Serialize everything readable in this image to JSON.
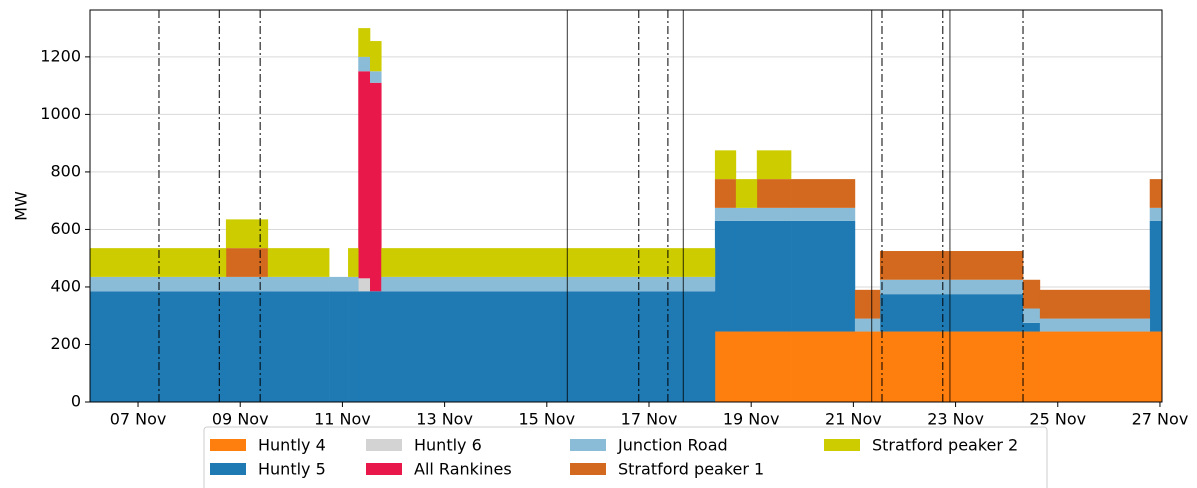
{
  "chart_data": {
    "type": "stacked-step-area",
    "ylabel": "MW",
    "ylim": [
      0,
      1363
    ],
    "yticks": [
      0,
      200,
      400,
      600,
      800,
      1000,
      1200
    ],
    "xlim": [
      6.06,
      27.04
    ],
    "xticks": [
      {
        "value": 7,
        "label": "07 Nov"
      },
      {
        "value": 9,
        "label": "09 Nov"
      },
      {
        "value": 11,
        "label": "11 Nov"
      },
      {
        "value": 13,
        "label": "13 Nov"
      },
      {
        "value": 15,
        "label": "15 Nov"
      },
      {
        "value": 17,
        "label": "17 Nov"
      },
      {
        "value": 19,
        "label": "19 Nov"
      },
      {
        "value": 21,
        "label": "21 Nov"
      },
      {
        "value": 23,
        "label": "23 Nov"
      },
      {
        "value": 25,
        "label": "25 Nov"
      },
      {
        "value": 27,
        "label": "27 Nov"
      }
    ],
    "grid": true,
    "legend": {
      "position": "bottom",
      "ncol": 4
    },
    "x": [
      6.06,
      8.72,
      9.54,
      10.74,
      11.11,
      11.31,
      11.54,
      11.76,
      18.29,
      18.7,
      19.11,
      19.78,
      21.03,
      21.52,
      24.32,
      24.65,
      26.8,
      27.04
    ],
    "series": [
      {
        "name": "Huntly 4",
        "color": "#ff7f0e",
        "values": [
          0,
          0,
          0,
          0,
          0,
          0,
          0,
          0,
          245,
          245,
          245,
          245,
          245,
          245,
          245,
          245,
          245,
          245
        ]
      },
      {
        "name": "Huntly 5",
        "color": "#1f7ab4",
        "values": [
          385,
          385,
          385,
          385,
          385,
          385,
          385,
          385,
          385,
          385,
          385,
          385,
          0,
          130,
          30,
          0,
          385,
          385
        ]
      },
      {
        "name": "Huntly 6",
        "color": "#d3d3d3",
        "values": [
          0,
          0,
          0,
          0,
          0,
          45,
          0,
          0,
          0,
          0,
          0,
          0,
          0,
          0,
          0,
          0,
          0,
          0
        ]
      },
      {
        "name": "All Rankines",
        "color": "#e8194a",
        "values": [
          0,
          0,
          0,
          0,
          0,
          720,
          725,
          0,
          0,
          0,
          0,
          0,
          0,
          0,
          0,
          0,
          0,
          0
        ]
      },
      {
        "name": "Junction Road",
        "color": "#8abcd8",
        "values": [
          50,
          50,
          50,
          50,
          50,
          50,
          40,
          50,
          45,
          45,
          45,
          45,
          45,
          50,
          50,
          45,
          45,
          45
        ]
      },
      {
        "name": "Stratford peaker 1",
        "color": "#d2691e",
        "values": [
          0,
          100,
          0,
          0,
          0,
          0,
          0,
          0,
          100,
          0,
          100,
          100,
          100,
          100,
          100,
          100,
          100,
          100
        ]
      },
      {
        "name": "Stratford peaker 2",
        "color": "#cccc00",
        "values": [
          100,
          100,
          100,
          0,
          100,
          100,
          105,
          100,
          100,
          100,
          100,
          0,
          0,
          0,
          0,
          0,
          0,
          0
        ]
      }
    ],
    "vlines": {
      "solid": [
        15.4,
        17.67,
        21.36,
        22.89
      ],
      "dashdot": [
        7.41,
        8.59,
        9.39,
        16.8,
        17.37,
        21.56,
        22.75,
        24.32
      ]
    }
  }
}
